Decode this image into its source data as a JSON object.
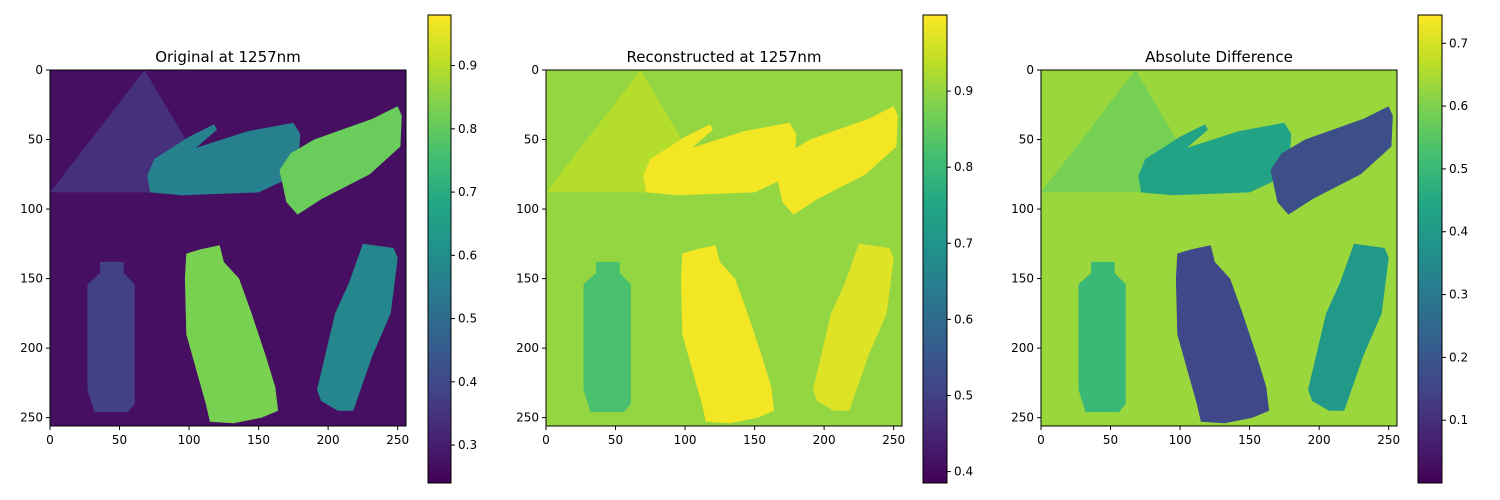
{
  "chart_data": [
    {
      "type": "heatmap",
      "title": "Original at 1257nm",
      "colormap": "viridis",
      "xlim": [
        0,
        255
      ],
      "ylim": [
        255,
        0
      ],
      "x_ticks": [
        "0",
        "50",
        "100",
        "150",
        "200",
        "250"
      ],
      "y_ticks": [
        "0",
        "50",
        "100",
        "150",
        "200",
        "250"
      ],
      "colorbar": {
        "range": [
          0.24,
          0.98
        ],
        "ticks": [
          "0.3",
          "0.4",
          "0.5",
          "0.6",
          "0.7",
          "0.8",
          "0.9"
        ]
      },
      "background": 0.27,
      "regions": [
        {
          "name": "triangle",
          "value": 0.34
        },
        {
          "name": "upper-bottle",
          "value": 0.56
        },
        {
          "name": "upper-right-bottle",
          "value": 0.81
        },
        {
          "name": "small-bottle",
          "value": 0.38
        },
        {
          "name": "middle-bottle",
          "value": 0.83
        },
        {
          "name": "right-bottle",
          "value": 0.58
        }
      ]
    },
    {
      "type": "heatmap",
      "title": "Reconstructed at 1257nm",
      "colormap": "viridis",
      "xlim": [
        0,
        255
      ],
      "ylim": [
        255,
        0
      ],
      "x_ticks": [
        "0",
        "50",
        "100",
        "150",
        "200",
        "250"
      ],
      "y_ticks": [
        "0",
        "50",
        "100",
        "150",
        "200",
        "250"
      ],
      "colorbar": {
        "range": [
          0.385,
          1.0
        ],
        "ticks": [
          "0.4",
          "0.5",
          "0.6",
          "0.7",
          "0.8",
          "0.9"
        ]
      },
      "background": 0.9,
      "regions": [
        {
          "name": "triangle",
          "value": 0.93
        },
        {
          "name": "upper-bottle",
          "value": 0.99
        },
        {
          "name": "upper-right-bottle",
          "value": 0.99
        },
        {
          "name": "small-bottle",
          "value": 0.82
        },
        {
          "name": "middle-bottle",
          "value": 0.99
        },
        {
          "name": "right-bottle",
          "value": 0.97
        }
      ]
    },
    {
      "type": "heatmap",
      "title": "Absolute Difference",
      "colormap": "viridis",
      "xlim": [
        0,
        255
      ],
      "ylim": [
        255,
        0
      ],
      "x_ticks": [
        "0",
        "50",
        "100",
        "150",
        "200",
        "250"
      ],
      "y_ticks": [
        "0",
        "50",
        "100",
        "150",
        "200",
        "250"
      ],
      "colorbar": {
        "range": [
          0.0,
          0.745
        ],
        "ticks": [
          "0.1",
          "0.2",
          "0.3",
          "0.4",
          "0.5",
          "0.6",
          "0.7"
        ]
      },
      "background": 0.63,
      "regions": [
        {
          "name": "triangle",
          "value": 0.59
        },
        {
          "name": "upper-bottle",
          "value": 0.43
        },
        {
          "name": "upper-right-bottle",
          "value": 0.18
        },
        {
          "name": "small-bottle",
          "value": 0.5
        },
        {
          "name": "middle-bottle",
          "value": 0.16
        },
        {
          "name": "right-bottle",
          "value": 0.4
        }
      ]
    }
  ]
}
